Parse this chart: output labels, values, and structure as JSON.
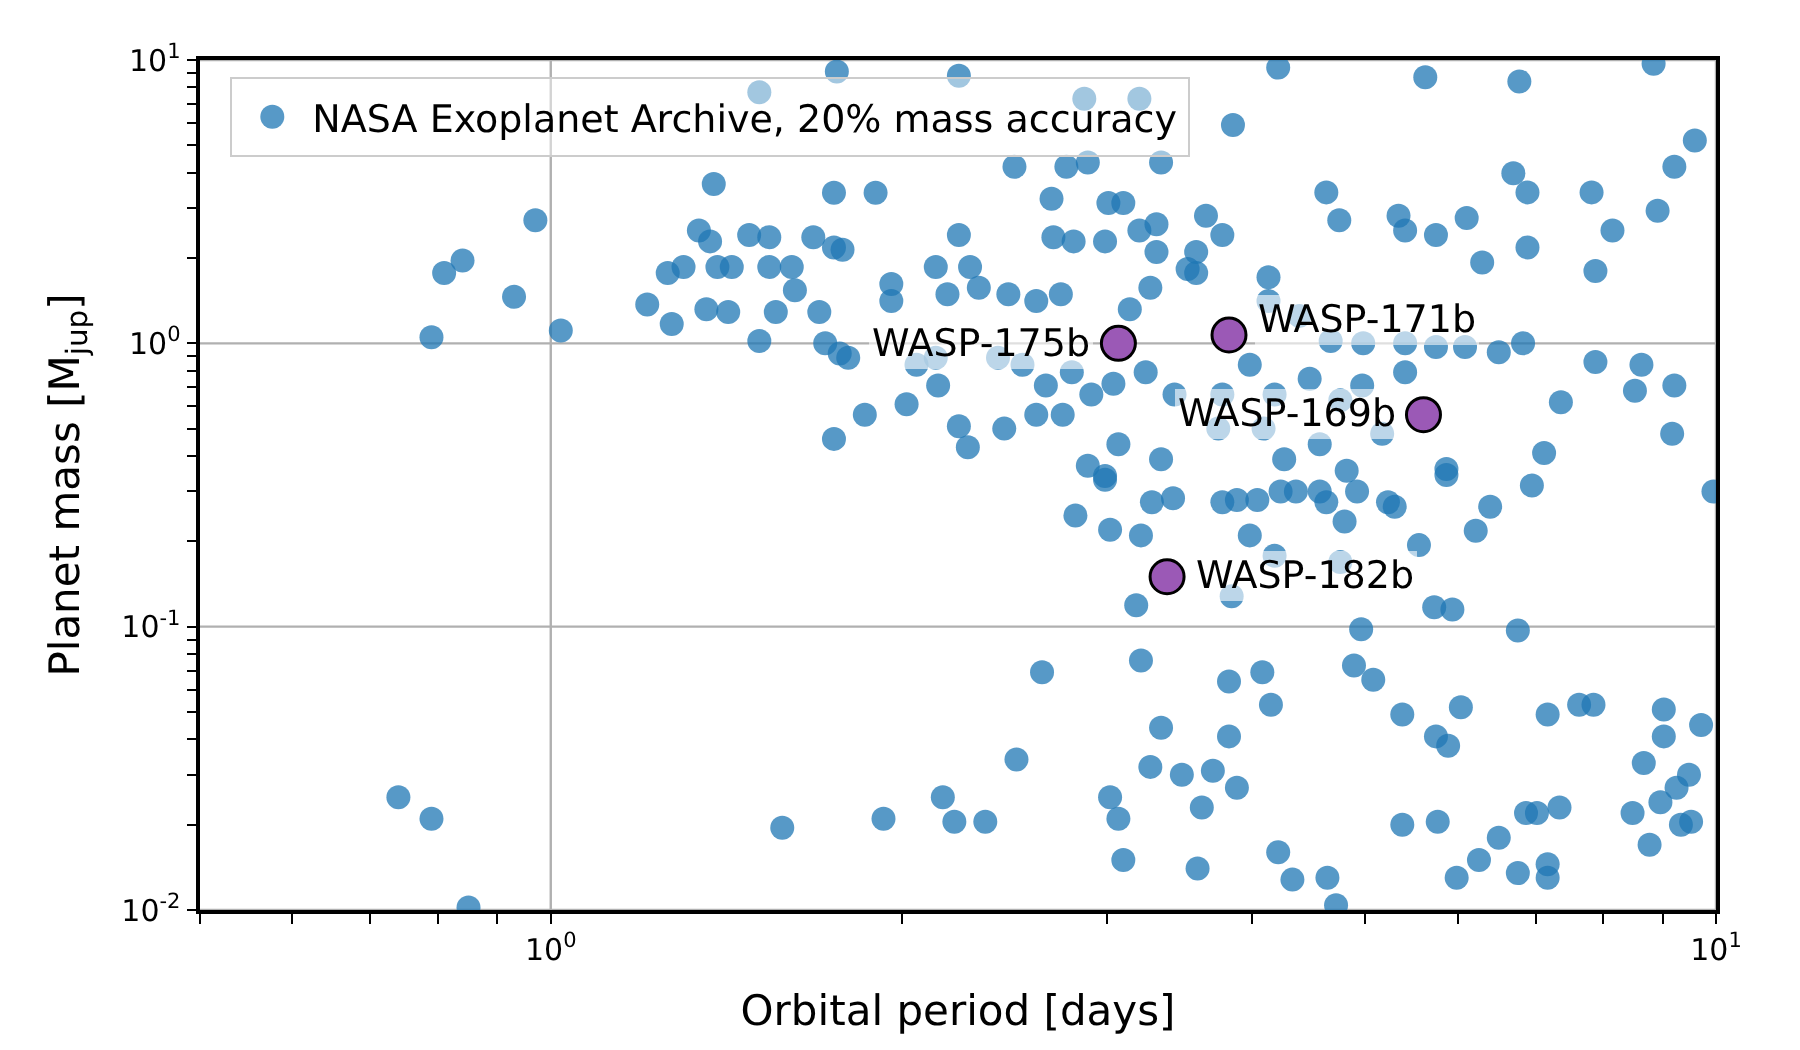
{
  "chart_data": {
    "type": "scatter",
    "xlabel": "Orbital period [days]",
    "ylabel": "Planet mass [M$_{jup}$]",
    "log": "xy",
    "xlim": [
      0.5,
      10
    ],
    "ylim": [
      0.01,
      10
    ],
    "xticks": [
      {
        "value": 0.5,
        "label": null
      },
      {
        "value": 0.6,
        "label": null
      },
      {
        "value": 0.7,
        "label": null
      },
      {
        "value": 0.8,
        "label": null
      },
      {
        "value": 0.9,
        "label": null
      },
      {
        "value": 1,
        "label": "10$^{0}$"
      },
      {
        "value": 2,
        "label": null
      },
      {
        "value": 3,
        "label": null
      },
      {
        "value": 4,
        "label": null
      },
      {
        "value": 5,
        "label": null
      },
      {
        "value": 6,
        "label": null
      },
      {
        "value": 7,
        "label": null
      },
      {
        "value": 8,
        "label": null
      },
      {
        "value": 9,
        "label": null
      },
      {
        "value": 10,
        "label": "10$^{1}$"
      }
    ],
    "yticks": [
      {
        "value": 0.01,
        "label": "10$^{-2}$"
      },
      {
        "value": 0.02,
        "label": null
      },
      {
        "value": 0.03,
        "label": null
      },
      {
        "value": 0.04,
        "label": null
      },
      {
        "value": 0.05,
        "label": null
      },
      {
        "value": 0.06,
        "label": null
      },
      {
        "value": 0.07,
        "label": null
      },
      {
        "value": 0.08,
        "label": null
      },
      {
        "value": 0.09,
        "label": null
      },
      {
        "value": 0.1,
        "label": "10$^{-1}$"
      },
      {
        "value": 0.2,
        "label": null
      },
      {
        "value": 0.3,
        "label": null
      },
      {
        "value": 0.4,
        "label": null
      },
      {
        "value": 0.5,
        "label": null
      },
      {
        "value": 0.6,
        "label": null
      },
      {
        "value": 0.7,
        "label": null
      },
      {
        "value": 0.8,
        "label": null
      },
      {
        "value": 0.9,
        "label": null
      },
      {
        "value": 1,
        "label": "10$^{0}$"
      },
      {
        "value": 2,
        "label": null
      },
      {
        "value": 3,
        "label": null
      },
      {
        "value": 4,
        "label": null
      },
      {
        "value": 5,
        "label": null
      },
      {
        "value": 6,
        "label": null
      },
      {
        "value": 7,
        "label": null
      },
      {
        "value": 8,
        "label": null
      },
      {
        "value": 9,
        "label": null
      },
      {
        "value": 10,
        "label": "10$^{1}$"
      }
    ],
    "grid": true,
    "legend": "top left",
    "marker": "circle",
    "series": [
      {
        "name": "NASA Exoplanet Archive, 20% mass accuracy",
        "color": "#1f77b4",
        "x": [
          0.79,
          0.81,
          0.84,
          0.93,
          0.97,
          1.02,
          1.21,
          1.26,
          1.27,
          1.3,
          0.74,
          0.79,
          0.85,
          1.76,
          2.24,
          1.51,
          1.38,
          1.75,
          1.9,
          1.34,
          1.37,
          1.48,
          1.54,
          1.68,
          1.75,
          1.78,
          1.39,
          1.43,
          1.54,
          1.61,
          1.62,
          1.36,
          1.42,
          1.51,
          1.56,
          1.7,
          1.72,
          1.77,
          1.8,
          1.96,
          1.96,
          2.14,
          2.29,
          2.19,
          2.33,
          2.24,
          2.06,
          2.14,
          2.15,
          2.42,
          2.54,
          2.47,
          2.61,
          2.74,
          2.69,
          2.7,
          2.81,
          2.99,
          3.01,
          3.1,
          3.2,
          3.31,
          3.31,
          3.27,
          3.14,
          3.52,
          2.02,
          1.86,
          1.75,
          2.24,
          2.28,
          2.45,
          2.61,
          2.75,
          2.89,
          3.07,
          2.99,
          3.34,
          2.66,
          2.8,
          2.91,
          3.04,
          3.24,
          3.43,
          2.87,
          3.2,
          2.5,
          2.77,
          2.89,
          3.34,
          4.21,
          5.63,
          6.78,
          8.84,
          9.59,
          9.21,
          3.85,
          6.7,
          6.89,
          7.82,
          4.63,
          4.75,
          5.34,
          5.41,
          5.75,
          6.11,
          6.3,
          6.89,
          8.15,
          7.88,
          8.91,
          3.65,
          3.77,
          3.58,
          3.58,
          4.13,
          4.13,
          4.39,
          4.67,
          4.98,
          5.41,
          5.75,
          6.09,
          6.51,
          6.83,
          7.88,
          8.63,
          9.21,
          8.52,
          7.36,
          9.17,
          7.12,
          5.87,
          4.97,
          4.76,
          5.41,
          5.17,
          4.48,
          4.18,
          4.09,
          3.98,
          3.77,
          3.74,
          4.26,
          4.57,
          4.82,
          2.82,
          3.02,
          3.21,
          3.28,
          3.42,
          2.99,
          3.18,
          2.64,
          3.21,
          3.34,
          2.51,
          3.27,
          3.48,
          2.17,
          3.02,
          3.07,
          1.58,
          1.93,
          2.22,
          2.36,
          3.1,
          3.59,
          3.62,
          3.77,
          3.88,
          4.04,
          4.23,
          4.36,
          4.57,
          4.63,
          4.8,
          4.92,
          5.23,
          5.3,
          5.87,
          6.4,
          6.22,
          6.95,
          9.95,
          3.98,
          4.18,
          4.76,
          5.56,
          5.73,
          5.94,
          3.84,
          4.96,
          6.76,
          3.82,
          4.08,
          4.15,
          4.89,
          5.08,
          5.38,
          6.04,
          5.75,
          5.89,
          7.17,
          7.63,
          7.85,
          9.02,
          9.02,
          9.71,
          8.67,
          9.48,
          9.25,
          8.96,
          8.48,
          9.52,
          9.33,
          8.77,
          3.82,
          3.7,
          3.88,
          5.38,
          5.77,
          6.87,
          7.02,
          7.34,
          6.51,
          6.26,
          5.99,
          6.76,
          7.17,
          7.17,
          4.21,
          4.33,
          4.64,
          4.72
        ],
        "values": [
          1.05,
          1.77,
          1.96,
          1.46,
          2.72,
          1.11,
          1.37,
          1.77,
          1.17,
          1.86,
          0.025,
          0.021,
          0.0102,
          9.1,
          8.8,
          7.7,
          3.65,
          3.4,
          3.4,
          2.5,
          2.29,
          2.41,
          2.37,
          2.37,
          2.18,
          2.14,
          1.86,
          1.86,
          1.86,
          1.86,
          1.54,
          1.32,
          1.29,
          1.02,
          1.29,
          1.29,
          1.0,
          0.92,
          0.89,
          1.62,
          1.41,
          1.86,
          1.86,
          1.49,
          1.57,
          2.41,
          0.84,
          0.89,
          0.71,
          0.89,
          0.84,
          1.49,
          1.41,
          1.49,
          3.24,
          2.37,
          2.29,
          2.29,
          3.13,
          3.13,
          2.5,
          2.63,
          2.1,
          1.57,
          1.32,
          1.83,
          0.61,
          0.56,
          0.46,
          0.51,
          0.43,
          0.5,
          0.56,
          0.56,
          0.37,
          0.44,
          0.34,
          0.39,
          0.71,
          0.79,
          0.66,
          0.72,
          0.79,
          0.66,
          7.3,
          7.3,
          4.2,
          4.2,
          4.35,
          4.35,
          9.4,
          8.7,
          8.4,
          9.7,
          5.2,
          4.2,
          5.9,
          3.98,
          3.41,
          3.41,
          3.41,
          2.72,
          2.82,
          2.5,
          2.41,
          2.77,
          1.93,
          2.18,
          2.5,
          1.8,
          2.94,
          2.82,
          2.41,
          2.1,
          1.77,
          1.71,
          1.41,
          1.25,
          1.02,
          1.0,
          1.0,
          0.97,
          0.97,
          0.93,
          1.0,
          0.86,
          0.84,
          0.71,
          0.68,
          0.62,
          0.48,
          0.41,
          0.36,
          0.71,
          0.63,
          0.79,
          0.48,
          0.75,
          0.66,
          0.5,
          0.84,
          0.66,
          0.5,
          0.39,
          0.44,
          0.355,
          0.247,
          0.22,
          0.21,
          0.275,
          0.284,
          0.33,
          0.119,
          0.069,
          0.076,
          0.044,
          0.034,
          0.032,
          0.03,
          0.025,
          0.025,
          0.021,
          0.0195,
          0.021,
          0.0205,
          0.0205,
          0.015,
          0.014,
          0.023,
          0.275,
          0.28,
          0.28,
          0.3,
          0.3,
          0.3,
          0.275,
          0.235,
          0.3,
          0.275,
          0.265,
          0.343,
          0.265,
          0.218,
          0.315,
          0.3,
          0.21,
          0.178,
          0.169,
          0.194,
          0.117,
          0.115,
          0.128,
          0.098,
          0.097,
          0.064,
          0.069,
          0.053,
          0.073,
          0.065,
          0.049,
          0.052,
          0.041,
          0.038,
          0.049,
          0.053,
          0.053,
          0.051,
          0.041,
          0.045,
          0.033,
          0.03,
          0.027,
          0.024,
          0.022,
          0.0205,
          0.02,
          0.017,
          0.041,
          0.031,
          0.027,
          0.02,
          0.0205,
          0.022,
          0.022,
          0.023,
          0.018,
          0.015,
          0.013,
          0.0135,
          0.0145,
          0.013,
          0.016,
          0.0128,
          0.013,
          0.0104
        ]
      },
      {
        "color": "#9b59b6",
        "x": [
          3.07,
          3.82,
          5.61,
          3.38
        ],
        "values": [
          1.0,
          1.07,
          0.56,
          0.15
        ]
      }
    ],
    "annotations": [
      {
        "text": "WASP-175b",
        "x": 3.07,
        "y": 1.0
      },
      {
        "text": "WASP-171b",
        "x": 3.82,
        "y": 1.07
      },
      {
        "text": "WASP-169b",
        "x": 5.61,
        "y": 0.56
      },
      {
        "text": "WASP-182b",
        "x": 3.38,
        "y": 0.15
      }
    ]
  }
}
